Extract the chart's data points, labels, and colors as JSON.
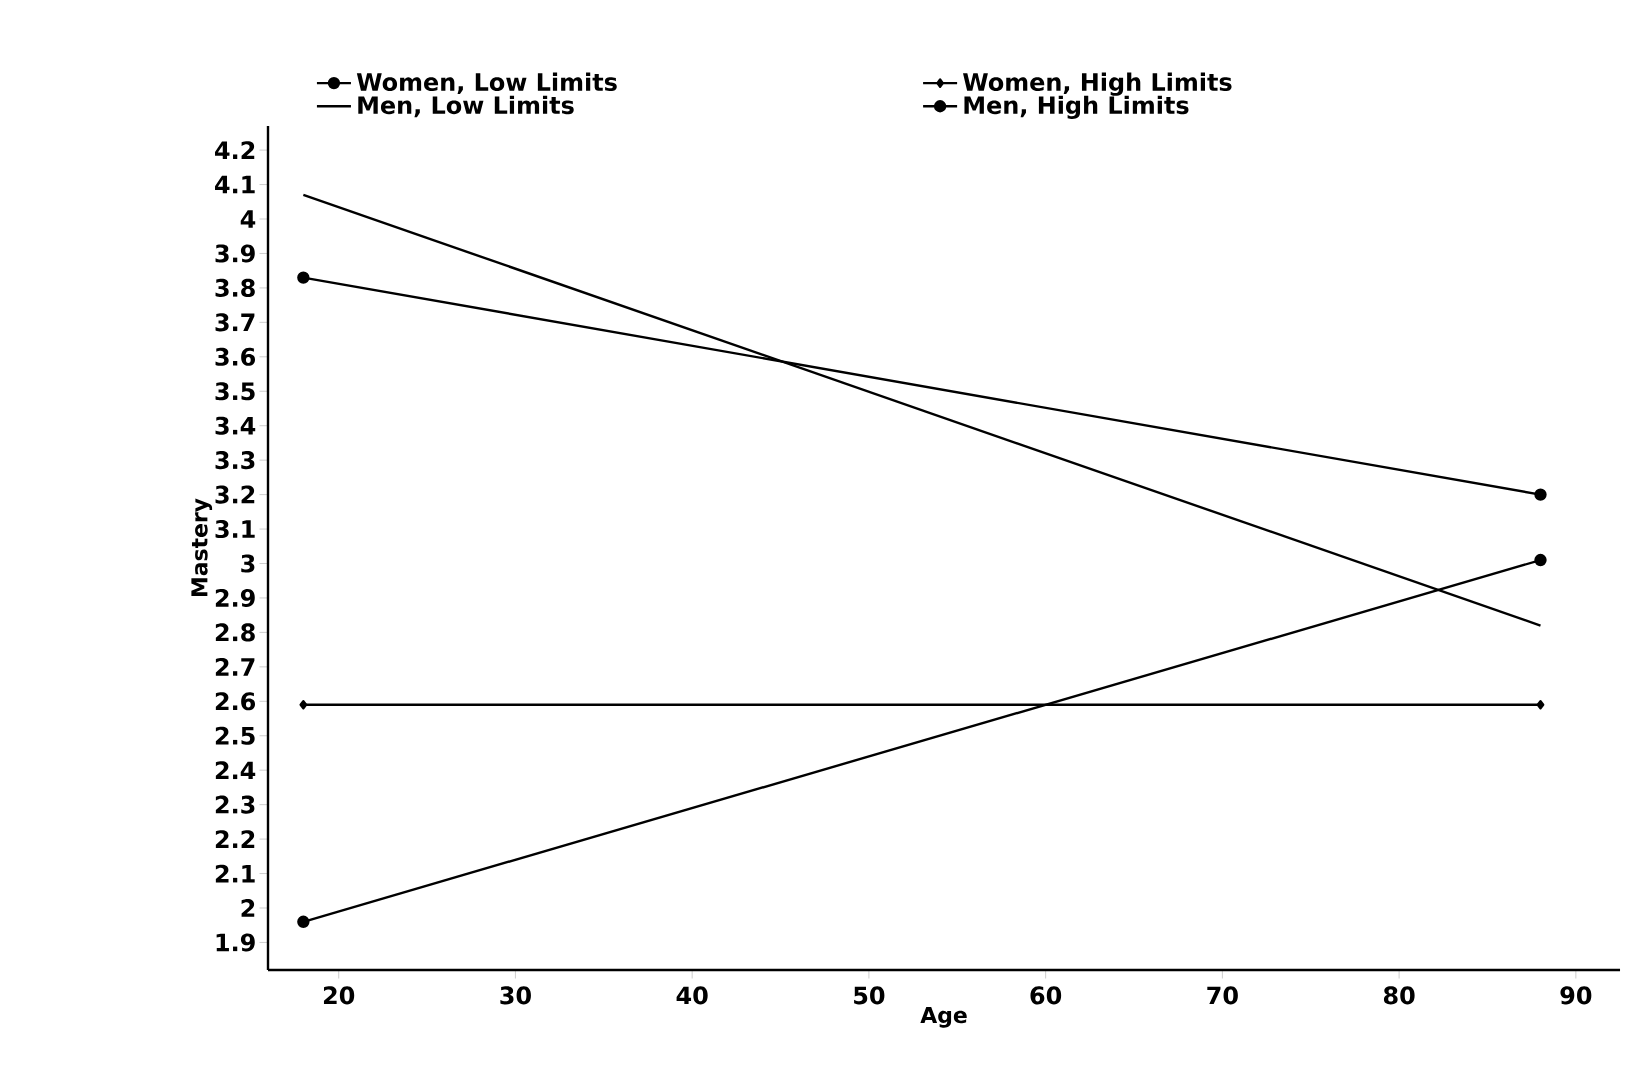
{
  "chart_data": {
    "type": "line",
    "xlabel": "Age",
    "ylabel": "Mastery",
    "x": [
      18,
      88
    ],
    "xlim": [
      16,
      92.5
    ],
    "xticks": [
      20,
      30,
      40,
      50,
      60,
      70,
      80,
      90
    ],
    "ylim": [
      1.82,
      4.27
    ],
    "yticks": [
      1.9,
      2,
      2.1,
      2.2,
      2.3,
      2.4,
      2.5,
      2.6,
      2.7,
      2.8,
      2.9,
      3,
      3.1,
      3.2,
      3.3,
      3.4,
      3.5,
      3.6,
      3.7,
      3.8,
      3.9,
      4,
      4.1,
      4.2
    ],
    "grid": false,
    "legend": "top",
    "line_style": "solid",
    "series": [
      {
        "name": "Women, Low Limits",
        "color": "#000000",
        "marker": "circle",
        "values": [
          3.83,
          3.2
        ]
      },
      {
        "name": "Women, High Limits",
        "color": "#000000",
        "marker": "diamond",
        "values": [
          2.59,
          2.59
        ]
      },
      {
        "name": "Men, Low Limits",
        "color": "#000000",
        "marker": "none",
        "values": [
          4.07,
          2.82
        ]
      },
      {
        "name": "Men, High Limits",
        "color": "#000000",
        "marker": "circle",
        "values": [
          1.96,
          3.01
        ]
      }
    ]
  }
}
